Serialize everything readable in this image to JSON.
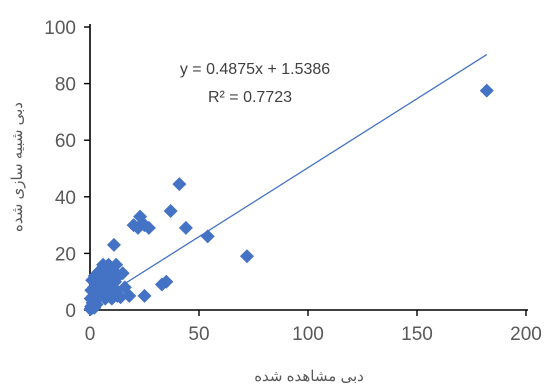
{
  "chart_data": {
    "type": "scatter",
    "xlabel": "دبی مشاهده شده",
    "ylabel": "دبی شبیه سازی شده",
    "xlim": [
      0,
      200
    ],
    "ylim": [
      0,
      100
    ],
    "x_ticks": [
      "0",
      "50",
      "100",
      "150",
      "200"
    ],
    "y_ticks": [
      "0",
      "20",
      "40",
      "60",
      "80",
      "100"
    ],
    "grid": false,
    "marker_color": "#4472C4",
    "trendline_color": "#4472C4",
    "trendline": {
      "slope": 0.4875,
      "intercept": 1.5386,
      "x_range": [
        0,
        182
      ]
    },
    "annotations": {
      "equation": "y = 0.4875x + 1.5386",
      "r_squared": "R² = 0.7723"
    },
    "points": [
      {
        "x": 0.2,
        "y": 0.3
      },
      {
        "x": 0.5,
        "y": 1.2
      },
      {
        "x": 0.8,
        "y": 0.6
      },
      {
        "x": 1.2,
        "y": 2.5
      },
      {
        "x": 0.3,
        "y": 4.0
      },
      {
        "x": 1.5,
        "y": 5.0
      },
      {
        "x": 2.0,
        "y": 3.0
      },
      {
        "x": 0.6,
        "y": 7.0
      },
      {
        "x": 1.8,
        "y": 8.0
      },
      {
        "x": 2.5,
        "y": 6.0
      },
      {
        "x": 1.0,
        "y": 10.5
      },
      {
        "x": 2.2,
        "y": 12.0
      },
      {
        "x": 3.0,
        "y": 9.0
      },
      {
        "x": 3.5,
        "y": 11.0
      },
      {
        "x": 4.0,
        "y": 13.5
      },
      {
        "x": 4.5,
        "y": 8.0
      },
      {
        "x": 5.0,
        "y": 14.0
      },
      {
        "x": 5.5,
        "y": 10.0
      },
      {
        "x": 6.0,
        "y": 16.0
      },
      {
        "x": 6.5,
        "y": 12.0
      },
      {
        "x": 7.0,
        "y": 15.0
      },
      {
        "x": 7.5,
        "y": 7.0
      },
      {
        "x": 8.0,
        "y": 13.0
      },
      {
        "x": 8.5,
        "y": 16.0
      },
      {
        "x": 9.0,
        "y": 9.0
      },
      {
        "x": 9.5,
        "y": 12.0
      },
      {
        "x": 10.0,
        "y": 6.0
      },
      {
        "x": 10.5,
        "y": 14.0
      },
      {
        "x": 11.0,
        "y": 23.0
      },
      {
        "x": 11.5,
        "y": 10.0
      },
      {
        "x": 12.0,
        "y": 16.0
      },
      {
        "x": 12.5,
        "y": 5.0
      },
      {
        "x": 13.0,
        "y": 12.0
      },
      {
        "x": 14.0,
        "y": 4.5
      },
      {
        "x": 15.0,
        "y": 13.0
      },
      {
        "x": 7.0,
        "y": 4.0
      },
      {
        "x": 10.0,
        "y": 4.0
      },
      {
        "x": 18.0,
        "y": 5.0
      },
      {
        "x": 20.0,
        "y": 30.0
      },
      {
        "x": 22.0,
        "y": 29.0
      },
      {
        "x": 23.0,
        "y": 33.0
      },
      {
        "x": 25.0,
        "y": 30.0
      },
      {
        "x": 27.0,
        "y": 29.0
      },
      {
        "x": 25.0,
        "y": 5.0
      },
      {
        "x": 33.0,
        "y": 9.0
      },
      {
        "x": 35.0,
        "y": 10.0
      },
      {
        "x": 37.0,
        "y": 35.0
      },
      {
        "x": 41.0,
        "y": 44.5
      },
      {
        "x": 44.0,
        "y": 29.0
      },
      {
        "x": 54.0,
        "y": 26.0
      },
      {
        "x": 72.0,
        "y": 19.0
      },
      {
        "x": 182.0,
        "y": 77.5
      },
      {
        "x": 3.0,
        "y": 2.0
      },
      {
        "x": 4.0,
        "y": 5.0
      },
      {
        "x": 1.0,
        "y": 1.5
      },
      {
        "x": 6.0,
        "y": 7.0
      },
      {
        "x": 8.0,
        "y": 8.0
      },
      {
        "x": 2.0,
        "y": 0.8
      },
      {
        "x": 12.0,
        "y": 7.0
      },
      {
        "x": 16.0,
        "y": 8.0
      }
    ]
  }
}
